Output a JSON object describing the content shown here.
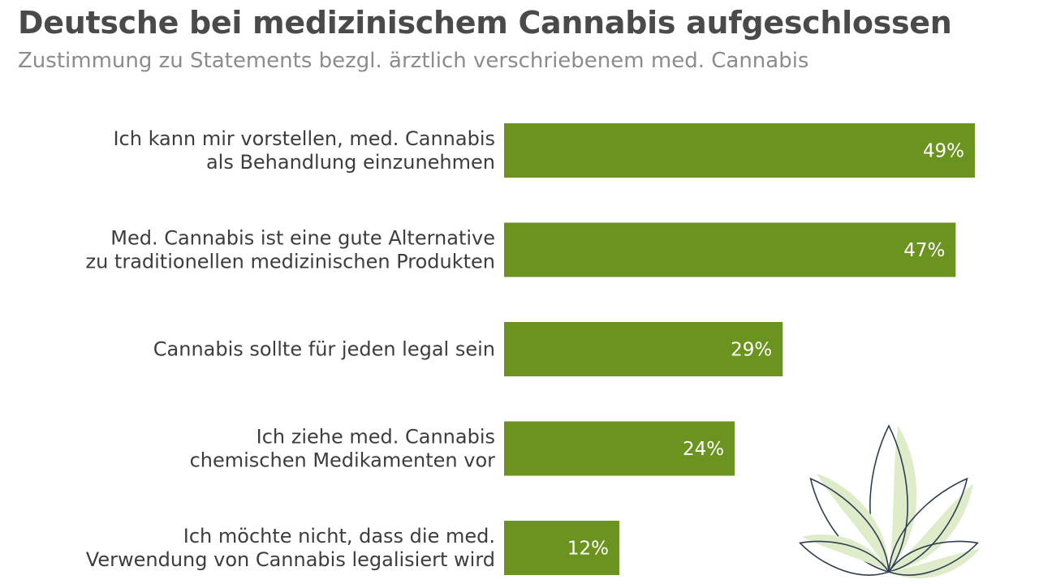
{
  "colors": {
    "bar": "#6b9320",
    "title": "#4a4a4a",
    "subtitle": "#8c8c8c",
    "leaf_outline": "#2f3f52",
    "leaf_fill": "#dfecc9"
  },
  "decoration": {
    "icon": "cannabis-leaf-icon"
  },
  "chart_data": {
    "type": "bar",
    "orientation": "horizontal",
    "title": "Deutsche bei medizinischem Cannabis aufgeschlossen",
    "subtitle": "Zustimmung zu Statements bezgl. ärztlich verschriebenem med. Cannabis",
    "categories": [
      [
        "Ich kann mir vorstellen, med. Cannabis",
        "als Behandlung einzunehmen"
      ],
      [
        "Med. Cannabis ist eine gute Alternative",
        "zu traditionellen medizinischen Produkten"
      ],
      [
        "Cannabis sollte für jeden legal sein"
      ],
      [
        "Ich ziehe med. Cannabis",
        "chemischen Medikamenten vor"
      ],
      [
        "Ich möchte nicht, dass die med.",
        "Verwendung von Cannabis legalisiert wird"
      ]
    ],
    "values": [
      49,
      47,
      29,
      24,
      12
    ],
    "value_labels": [
      "49%",
      "47%",
      "29%",
      "24%",
      "12%"
    ],
    "unit": "%",
    "xlim": [
      0,
      49
    ],
    "grid": false,
    "legend": "none"
  }
}
